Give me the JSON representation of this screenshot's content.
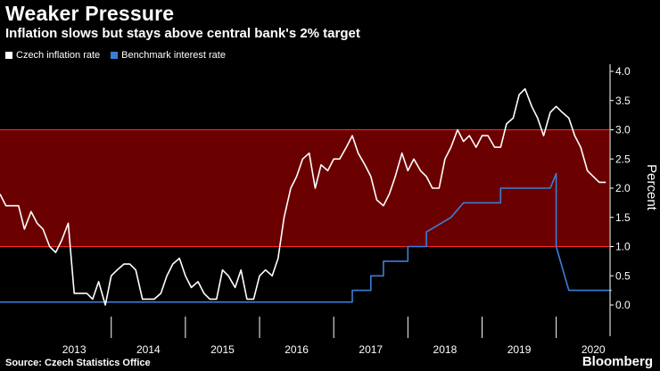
{
  "header": {
    "title": "Weaker Pressure",
    "subtitle": "Inflation slows but stays above central bank's 2% target"
  },
  "footer": {
    "source": "Source: Czech Statistics Office",
    "brand": "Bloomberg"
  },
  "colors": {
    "inflation": "#ffffff",
    "rate": "#3a7fd6",
    "band": "#6b0000",
    "band_edge": "#ff2a2a",
    "background": "#000000"
  },
  "chart_data": {
    "type": "line",
    "title": "Weaker Pressure",
    "subtitle": "Inflation slows but stays above central bank's 2% target",
    "xlabel": "",
    "ylabel": "Percent",
    "ylim": [
      -0.3,
      4.0
    ],
    "yticks": [
      "4.0",
      "3.5",
      "3.0",
      "2.5",
      "2.0",
      "1.5",
      "1.0",
      "0.5",
      "0.0"
    ],
    "ytick_values": [
      4.0,
      3.5,
      3.0,
      2.5,
      2.0,
      1.5,
      1.0,
      0.5,
      0.0
    ],
    "x_start": 2012.5,
    "x_end": 2020.75,
    "year_labels": [
      "2013",
      "2014",
      "2015",
      "2016",
      "2017",
      "2018",
      "2019",
      "2020"
    ],
    "target_band": [
      1.0,
      3.0
    ],
    "legend": [
      "Czech inflation rate",
      "Benchmark interest rate"
    ],
    "series": [
      {
        "name": "Czech inflation rate",
        "x": [
          2012.5,
          2012.58,
          2012.67,
          2012.75,
          2012.83,
          2012.92,
          2013.0,
          2013.08,
          2013.17,
          2013.25,
          2013.33,
          2013.42,
          2013.5,
          2013.58,
          2013.67,
          2013.75,
          2013.83,
          2013.92,
          2014.0,
          2014.08,
          2014.17,
          2014.25,
          2014.33,
          2014.42,
          2014.5,
          2014.58,
          2014.67,
          2014.75,
          2014.83,
          2014.92,
          2015.0,
          2015.08,
          2015.17,
          2015.25,
          2015.33,
          2015.42,
          2015.5,
          2015.58,
          2015.67,
          2015.75,
          2015.83,
          2015.92,
          2016.0,
          2016.08,
          2016.17,
          2016.25,
          2016.33,
          2016.42,
          2016.5,
          2016.58,
          2016.67,
          2016.75,
          2016.83,
          2016.92,
          2017.0,
          2017.08,
          2017.17,
          2017.25,
          2017.33,
          2017.42,
          2017.5,
          2017.58,
          2017.67,
          2017.75,
          2017.83,
          2017.92,
          2018.0,
          2018.08,
          2018.17,
          2018.25,
          2018.33,
          2018.42,
          2018.5,
          2018.58,
          2018.67,
          2018.75,
          2018.83,
          2018.92,
          2019.0,
          2019.08,
          2019.17,
          2019.25,
          2019.33,
          2019.42,
          2019.5,
          2019.58,
          2019.67,
          2019.75,
          2019.83,
          2019.92,
          2020.0,
          2020.08,
          2020.17,
          2020.25,
          2020.33,
          2020.42,
          2020.5,
          2020.58,
          2020.67
        ],
        "values": [
          1.9,
          1.7,
          1.7,
          1.7,
          1.3,
          1.6,
          1.4,
          1.3,
          1.0,
          0.9,
          1.1,
          1.4,
          0.2,
          0.2,
          0.2,
          0.1,
          0.4,
          0.0,
          0.5,
          0.6,
          0.7,
          0.7,
          0.6,
          0.1,
          0.1,
          0.1,
          0.2,
          0.5,
          0.7,
          0.8,
          0.5,
          0.3,
          0.4,
          0.2,
          0.1,
          0.1,
          0.6,
          0.5,
          0.3,
          0.6,
          0.1,
          0.1,
          0.5,
          0.6,
          0.5,
          0.8,
          1.5,
          2.0,
          2.2,
          2.5,
          2.6,
          2.0,
          2.4,
          2.3,
          2.5,
          2.5,
          2.7,
          2.9,
          2.6,
          2.4,
          2.2,
          1.8,
          1.7,
          1.9,
          2.2,
          2.6,
          2.3,
          2.5,
          2.3,
          2.2,
          2.0,
          2.0,
          2.5,
          2.7,
          3.0,
          2.8,
          2.9,
          2.7,
          2.9,
          2.9,
          2.7,
          2.7,
          3.1,
          3.2,
          3.6,
          3.7,
          3.4,
          3.2,
          2.9,
          3.3,
          3.4,
          3.3,
          3.2,
          2.9,
          2.7,
          2.3,
          2.2,
          2.1,
          2.1
        ]
      },
      {
        "name": "Benchmark interest rate",
        "x": [
          2012.5,
          2017.0,
          2017.25,
          2017.25,
          2017.5,
          2017.5,
          2017.67,
          2017.67,
          2018.0,
          2018.0,
          2018.25,
          2018.25,
          2018.58,
          2018.58,
          2018.75,
          2018.75,
          2019.25,
          2019.25,
          2019.83,
          2019.92,
          2020.0,
          2020.0,
          2020.17,
          2020.17,
          2020.75
        ],
        "values": [
          0.05,
          0.05,
          0.05,
          0.25,
          0.25,
          0.5,
          0.5,
          0.75,
          0.75,
          1.0,
          1.0,
          1.25,
          1.5,
          1.5,
          1.75,
          1.75,
          1.75,
          2.0,
          2.0,
          2.0,
          2.25,
          1.0,
          0.25,
          0.25,
          0.25
        ]
      }
    ]
  }
}
